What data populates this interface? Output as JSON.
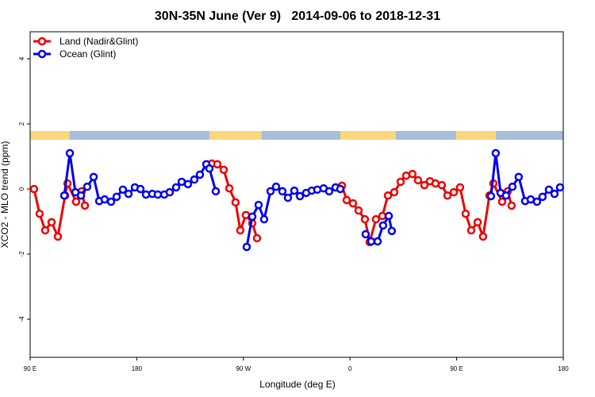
{
  "chart_data": {
    "type": "line",
    "title": "30N-35N June (Ver 9)   2014-09-06 to 2018-12-31",
    "xlabel": "Longitude (deg E)",
    "ylabel": "XCO2 - MLO trend (ppm)",
    "xlim": [
      90,
      540
    ],
    "ylim": [
      -5.17,
      4.83
    ],
    "xticks": [
      {
        "value": 90,
        "label": "90 E"
      },
      180,
      {
        "value": 270,
        "label": "90 W"
      },
      {
        "value": 360,
        "label": "0"
      },
      {
        "value": 450,
        "label": "90 E"
      },
      {
        "value": 540,
        "label": "180"
      }
    ],
    "yticks": [
      -4,
      -2,
      0,
      2,
      4
    ],
    "legend": "top-left",
    "series": [
      {
        "name": "Land (Nadir&Glint)",
        "color": "#ee0000",
        "x": [
          93.3,
          98.0,
          102.7,
          108.1,
          113.4,
          119.5,
          121.5,
          128.8,
          133.5,
          136.2,
          null,
          243.3,
          248.0,
          253.4,
          258.1,
          263.4,
          267.4,
          272.1,
          277.5,
          281.5,
          null,
          353.2,
          357.2,
          362.5,
          367.2,
          372.6,
          376.6,
          381.9,
          387.3,
          392.0,
          397.3,
          402.7,
          407.4,
          412.7,
          417.4,
          422.8,
          427.5,
          432.2,
          437.5,
          442.2,
          447.6,
          452.9,
          457.6,
          462.3,
          467.7,
          472.3,
          477.7,
          481.0,
          488.4,
          493.1,
          496.4
        ],
        "values": [
          0,
          -0.76,
          -1.27,
          -1.02,
          -1.46,
          -0.2,
          0.17,
          -0.39,
          -0.07,
          -0.51,
          null,
          0.78,
          0.76,
          0.59,
          0.02,
          -0.41,
          -1.27,
          -0.8,
          -1.05,
          -1.51,
          null,
          0.1,
          -0.34,
          -0.44,
          -0.66,
          -0.93,
          -1.63,
          -0.93,
          -0.83,
          -0.2,
          -0.1,
          0.22,
          0.41,
          0.46,
          0.27,
          0.12,
          0.24,
          0.17,
          0.12,
          -0.2,
          -0.1,
          0.05,
          -0.76,
          -1.27,
          -1.02,
          -1.46,
          -0.2,
          0.17,
          -0.39,
          -0.07,
          -0.51
        ]
      },
      {
        "name": "Ocean (Glint)",
        "color": "#0000ee",
        "x": [
          118.8,
          123.5,
          128.2,
          132.9,
          138.2,
          143.6,
          148.3,
          152.9,
          158.3,
          163.0,
          168.3,
          173.0,
          178.4,
          183.1,
          187.8,
          193.1,
          197.8,
          203.2,
          207.8,
          213.2,
          217.9,
          223.2,
          228.6,
          233.3,
          238.7,
          241.3,
          246.7,
          null,
          272.8,
          277.5,
          282.8,
          287.5,
          292.9,
          297.6,
          302.9,
          307.6,
          313.0,
          317.7,
          323.0,
          327.7,
          332.4,
          337.7,
          342.4,
          347.8,
          351.8,
          null,
          373.2,
          377.9,
          383.3,
          387.9,
          392.7,
          395.3,
          null,
          479.0,
          483.0,
          487.1,
          491.7,
          497.1,
          502.4,
          507.8,
          512.5,
          517.8,
          522.5,
          527.9,
          532.6,
          537.3
        ],
        "values": [
          -0.2,
          1.1,
          -0.1,
          -0.2,
          0.07,
          0.37,
          -0.37,
          -0.32,
          -0.39,
          -0.24,
          -0.02,
          -0.15,
          0.05,
          0,
          -0.17,
          -0.15,
          -0.17,
          -0.17,
          -0.1,
          0.05,
          0.22,
          0.15,
          0.29,
          0.44,
          0.76,
          0.63,
          -0.07,
          null,
          -1.78,
          -0.85,
          -0.49,
          -0.93,
          -0.07,
          0.07,
          -0.07,
          -0.27,
          -0.05,
          -0.22,
          -0.12,
          -0.05,
          -0.02,
          0.02,
          -0.07,
          0.05,
          0,
          null,
          -1.39,
          -1.61,
          -1.61,
          -1.12,
          -0.83,
          -1.29,
          null,
          -0.22,
          1.1,
          -0.12,
          -0.2,
          0.07,
          0.37,
          -0.37,
          -0.32,
          -0.39,
          -0.24,
          -0.02,
          -0.15,
          0.05
        ]
      }
    ]
  }
}
